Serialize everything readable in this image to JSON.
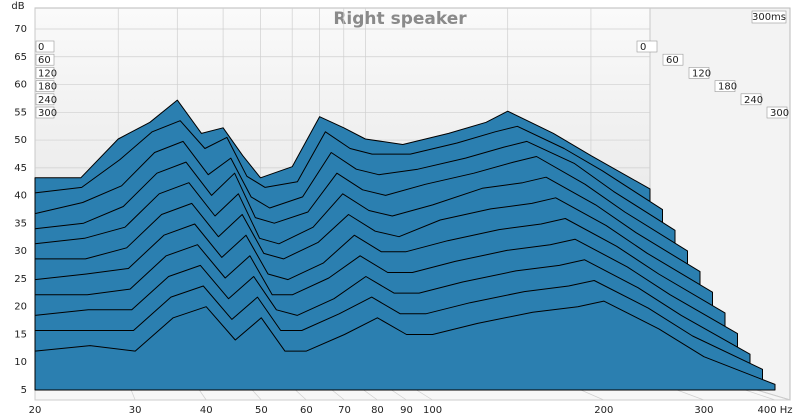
{
  "chart_data": {
    "type": "waterfall",
    "title": "Right speaker",
    "y_label": "dB",
    "time_label": "300ms",
    "color": "#2b7fb0",
    "x": [
      20,
      25,
      30,
      35,
      40,
      45,
      50,
      55,
      60,
      70,
      80,
      90,
      100,
      120,
      150,
      180,
      200,
      250,
      300,
      400
    ],
    "xlim": [
      20,
      400
    ],
    "xscale": "log",
    "xticks": [
      20,
      30,
      40,
      50,
      60,
      70,
      80,
      90,
      100,
      200,
      300,
      {
        "value": 400,
        "label": "400 Hz"
      }
    ],
    "ylim": [
      5,
      70
    ],
    "yticks": [
      5,
      10,
      15,
      20,
      25,
      30,
      35,
      40,
      45,
      50,
      55,
      60,
      65,
      70
    ],
    "zlim": [
      0,
      300
    ],
    "zticks": [
      0,
      60,
      120,
      180,
      240,
      300
    ],
    "grid": true,
    "series": [
      {
        "z": 0,
        "values": [
          36,
          36,
          43,
          46,
          50,
          44,
          45,
          40,
          36,
          38,
          47,
          45,
          43,
          42,
          44,
          46,
          48,
          44,
          40,
          34
        ]
      },
      {
        "z": 30,
        "values": [
          34,
          35,
          40,
          45,
          47,
          42,
          44,
          37,
          35,
          36,
          45,
          42,
          41,
          41,
          43,
          45,
          46,
          42,
          38,
          31
        ]
      },
      {
        "z": 60,
        "values": [
          31,
          33,
          36,
          42,
          44,
          38,
          41,
          34,
          32,
          34,
          42,
          39,
          38,
          39,
          41,
          43,
          44,
          40,
          35,
          28
        ]
      },
      {
        "z": 90,
        "values": [
          29,
          30,
          33,
          39,
          41,
          35,
          39,
          31,
          30,
          32,
          39,
          36,
          35,
          37,
          39,
          41,
          42,
          37,
          32,
          25
        ]
      },
      {
        "z": 120,
        "values": [
          27,
          28,
          30,
          36,
          38,
          32,
          36,
          28,
          27,
          30,
          36,
          33,
          32,
          34,
          37,
          38,
          39,
          34,
          29,
          22
        ]
      },
      {
        "z": 150,
        "values": [
          25,
          25,
          27,
          33,
          35,
          29,
          33,
          26,
          25,
          28,
          33,
          30,
          29,
          32,
          34,
          35,
          36,
          31,
          26,
          19
        ]
      },
      {
        "z": 180,
        "values": [
          22,
          23,
          24,
          30,
          32,
          26,
          30,
          23,
          22,
          25,
          30,
          27,
          27,
          29,
          31,
          32,
          33,
          28,
          23,
          16
        ]
      },
      {
        "z": 210,
        "values": [
          20,
          20,
          21,
          27,
          29,
          23,
          27,
          20,
          20,
          23,
          27,
          24,
          24,
          26,
          28,
          29,
          30,
          25,
          20,
          13
        ]
      },
      {
        "z": 240,
        "values": [
          17,
          18,
          18,
          24,
          26,
          20,
          24,
          18,
          17,
          20,
          24,
          21,
          21,
          23,
          25,
          26,
          27,
          22,
          17,
          10
        ]
      },
      {
        "z": 270,
        "values": [
          15,
          15,
          15,
          21,
          23,
          17,
          21,
          15,
          15,
          18,
          21,
          18,
          18,
          20,
          22,
          23,
          24,
          19,
          14,
          8
        ]
      },
      {
        "z": 300,
        "values": [
          12,
          13,
          12,
          18,
          20,
          14,
          18,
          12,
          12,
          15,
          18,
          15,
          15,
          17,
          19,
          20,
          21,
          16,
          11,
          6
        ]
      }
    ]
  }
}
